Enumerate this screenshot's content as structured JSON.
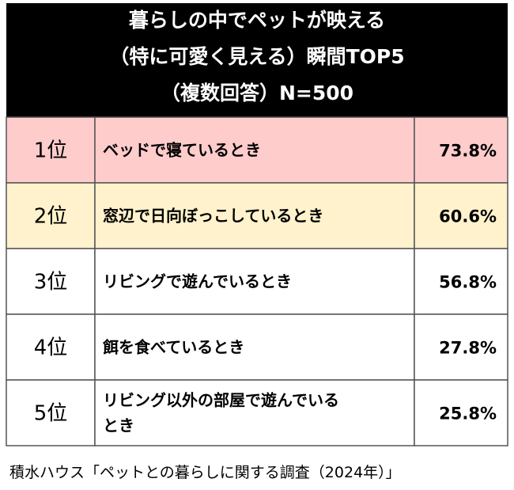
{
  "chart_data": {
    "type": "table",
    "title_lines": [
      "暮らしの中でペットが映える",
      "（特に可愛く見える）瞬間TOP5",
      "（複数回答）N=500"
    ],
    "rows": [
      {
        "rank": "1位",
        "label_lines": [
          "ベッドで寝ているとき"
        ],
        "value_text": "73.8%",
        "value": 73.8,
        "bg": "#ffcccc"
      },
      {
        "rank": "2位",
        "label_lines": [
          "窓辺で日向ぼっこしているとき"
        ],
        "value_text": "60.6%",
        "value": 60.6,
        "bg": "#fff2cc"
      },
      {
        "rank": "3位",
        "label_lines": [
          "リビングで遊んでいるとき"
        ],
        "value_text": "56.8%",
        "value": 56.8,
        "bg": "#ffffff"
      },
      {
        "rank": "4位",
        "label_lines": [
          "餌を食べているとき"
        ],
        "value_text": "27.8%",
        "value": 27.8,
        "bg": "#ffffff"
      },
      {
        "rank": "5位",
        "label_lines": [
          "リビング以外の部屋で遊んでいる",
          "とき"
        ],
        "value_text": "25.8%",
        "value": 25.8,
        "bg": "#ffffff"
      }
    ],
    "source": "積水ハウス「ペットとの暮らしに関する調査（2024年）」"
  },
  "colors": {
    "header_bg": "#000000",
    "header_text": "#ffffff",
    "rank1_bg": "#ffcccc",
    "rank2_bg": "#fff2cc",
    "border": "#555555"
  }
}
